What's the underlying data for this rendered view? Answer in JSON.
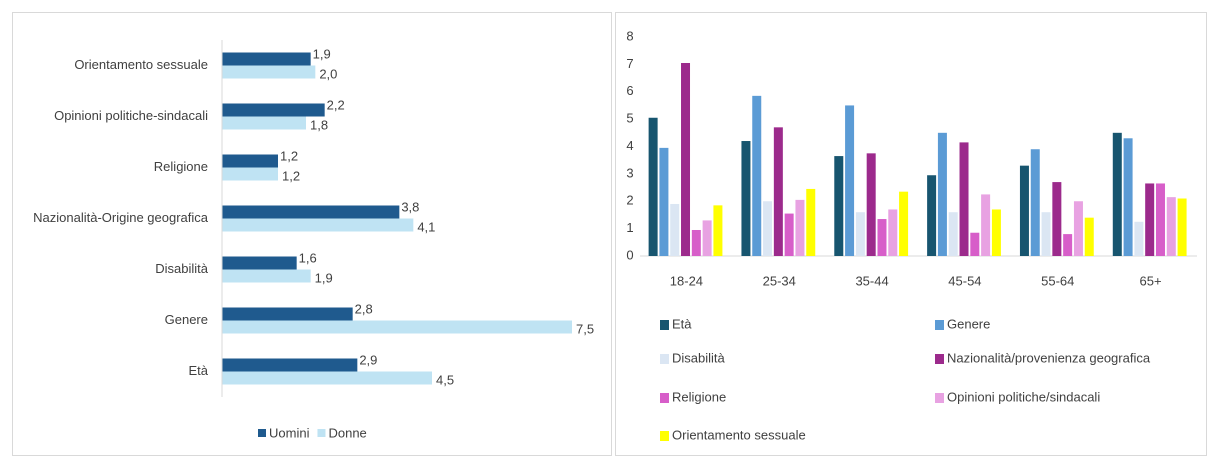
{
  "chart_data": [
    {
      "type": "bar",
      "orientation": "horizontal",
      "legend": "bottom",
      "categories": [
        "Orientamento sessuale",
        "Opinioni politiche-sindacali",
        "Religione",
        "Nazionalità-Origine geografica",
        "Disabilità",
        "Genere",
        "Età"
      ],
      "series": [
        {
          "name": "Uomini",
          "color": "#1f5a8e",
          "values": [
            1.9,
            2.2,
            1.2,
            3.8,
            1.6,
            2.8,
            2.9
          ],
          "value_labels": [
            "1,9",
            "2,2",
            "1,2",
            "3,8",
            "1,6",
            "2,8",
            "2,9"
          ]
        },
        {
          "name": "Donne",
          "color": "#bfe3f3",
          "values": [
            2.0,
            1.8,
            1.2,
            4.1,
            1.9,
            7.5,
            4.5
          ],
          "value_labels": [
            "2,0",
            "1,8",
            "1,2",
            "4,1",
            "1,9",
            "7,5",
            "4,5"
          ]
        }
      ]
    },
    {
      "type": "bar",
      "legend": "bottom",
      "categories": [
        "18-24",
        "25-34",
        "35-44",
        "45-54",
        "55-64",
        "65+"
      ],
      "ylim": [
        0,
        8
      ],
      "yticks": [
        0,
        1,
        2,
        3,
        4,
        5,
        6,
        7,
        8
      ],
      "series": [
        {
          "name": "Età",
          "color": "#17556f",
          "values": [
            5.05,
            4.2,
            3.65,
            2.95,
            3.3,
            4.5
          ]
        },
        {
          "name": "Genere",
          "color": "#5b9bd5",
          "values": [
            3.95,
            5.85,
            5.5,
            4.5,
            3.9,
            4.3
          ]
        },
        {
          "name": "Disabilità",
          "color": "#dbe6f3",
          "values": [
            1.9,
            2.0,
            1.6,
            1.6,
            1.6,
            1.25
          ]
        },
        {
          "name": "Nazionalità/provenienza geografica",
          "color": "#9c2a8c",
          "values": [
            7.05,
            4.7,
            3.75,
            4.15,
            2.7,
            2.65
          ]
        },
        {
          "name": "Religione",
          "color": "#d75ec9",
          "values": [
            0.95,
            1.55,
            1.35,
            0.85,
            0.8,
            2.65
          ]
        },
        {
          "name": "Opinioni politiche/sindacali",
          "color": "#e8a2e2",
          "values": [
            1.3,
            2.05,
            1.7,
            2.25,
            2.0,
            2.15
          ]
        },
        {
          "name": "Orientamento sessuale",
          "color": "#ffff00",
          "values": [
            1.85,
            2.45,
            2.35,
            1.7,
            1.4,
            2.1
          ]
        }
      ]
    }
  ]
}
